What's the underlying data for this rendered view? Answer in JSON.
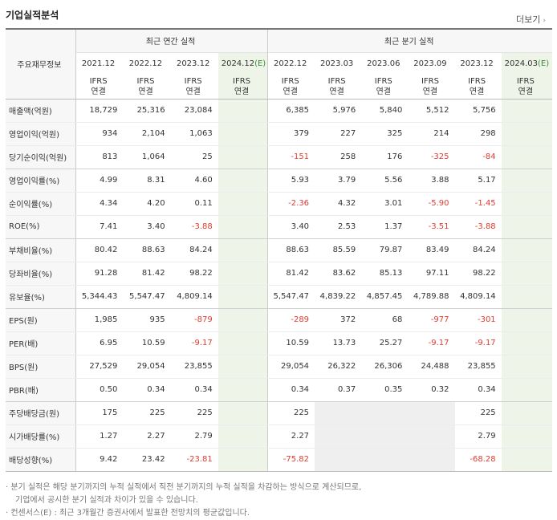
{
  "title": "기업실적분석",
  "more_label": "더보기",
  "header": {
    "row_label": "주요재무정보",
    "annual_group": "최근 연간 실적",
    "quarter_group": "최근 분기 실적",
    "annual_periods": [
      "2021.12",
      "2022.12",
      "2023.12",
      "2024.12(E)"
    ],
    "quarter_periods": [
      "2022.12",
      "2023.03",
      "2023.06",
      "2023.09",
      "2023.12",
      "2024.03(E)"
    ],
    "ifrs_top": "IFRS",
    "ifrs_bottom": "연결"
  },
  "rows": [
    {
      "label": "매출액(억원)",
      "annual": [
        "18,729",
        "25,316",
        "23,084",
        ""
      ],
      "quarter": [
        "6,385",
        "5,976",
        "5,840",
        "5,512",
        "5,756",
        ""
      ]
    },
    {
      "label": "영업이익(억원)",
      "annual": [
        "934",
        "2,104",
        "1,063",
        ""
      ],
      "quarter": [
        "379",
        "227",
        "325",
        "214",
        "298",
        ""
      ]
    },
    {
      "label": "당기순이익(억원)",
      "annual": [
        "813",
        "1,064",
        "25",
        ""
      ],
      "quarter": [
        "-151",
        "258",
        "176",
        "-325",
        "-84",
        ""
      ]
    },
    {
      "label": "영업이익률(%)",
      "annual": [
        "4.99",
        "8.31",
        "4.60",
        ""
      ],
      "quarter": [
        "5.93",
        "3.79",
        "5.56",
        "3.88",
        "5.17",
        ""
      ]
    },
    {
      "label": "순이익률(%)",
      "annual": [
        "4.34",
        "4.20",
        "0.11",
        ""
      ],
      "quarter": [
        "-2.36",
        "4.32",
        "3.01",
        "-5.90",
        "-1.45",
        ""
      ]
    },
    {
      "label": "ROE(%)",
      "annual": [
        "7.41",
        "3.40",
        "-3.88",
        ""
      ],
      "quarter": [
        "3.40",
        "2.53",
        "1.37",
        "-3.51",
        "-3.88",
        ""
      ]
    },
    {
      "label": "부채비율(%)",
      "annual": [
        "80.42",
        "88.63",
        "84.24",
        ""
      ],
      "quarter": [
        "88.63",
        "85.59",
        "79.87",
        "83.49",
        "84.24",
        ""
      ]
    },
    {
      "label": "당좌비율(%)",
      "annual": [
        "91.28",
        "81.42",
        "98.22",
        ""
      ],
      "quarter": [
        "81.42",
        "83.62",
        "85.13",
        "97.11",
        "98.22",
        ""
      ]
    },
    {
      "label": "유보율(%)",
      "annual": [
        "5,344.43",
        "5,547.47",
        "4,809.14",
        ""
      ],
      "quarter": [
        "5,547.47",
        "4,839.22",
        "4,857.45",
        "4,789.88",
        "4,809.14",
        ""
      ]
    },
    {
      "label": "EPS(원)",
      "annual": [
        "1,985",
        "935",
        "-879",
        ""
      ],
      "quarter": [
        "-289",
        "372",
        "68",
        "-977",
        "-301",
        ""
      ]
    },
    {
      "label": "PER(배)",
      "annual": [
        "6.95",
        "10.59",
        "-9.17",
        ""
      ],
      "quarter": [
        "10.59",
        "13.73",
        "25.27",
        "-9.17",
        "-9.17",
        ""
      ]
    },
    {
      "label": "BPS(원)",
      "annual": [
        "27,529",
        "29,054",
        "23,855",
        ""
      ],
      "quarter": [
        "29,054",
        "26,322",
        "26,306",
        "24,488",
        "23,855",
        ""
      ]
    },
    {
      "label": "PBR(배)",
      "annual": [
        "0.50",
        "0.34",
        "0.34",
        ""
      ],
      "quarter": [
        "0.34",
        "0.37",
        "0.35",
        "0.32",
        "0.34",
        ""
      ]
    },
    {
      "label": "주당배당금(원)",
      "annual": [
        "175",
        "225",
        "225",
        ""
      ],
      "quarter": [
        "225",
        "",
        "",
        "",
        "225",
        ""
      ]
    },
    {
      "label": "시가배당률(%)",
      "annual": [
        "1.27",
        "2.27",
        "2.79",
        ""
      ],
      "quarter": [
        "2.27",
        "",
        "",
        "",
        "2.79",
        ""
      ]
    },
    {
      "label": "배당성향(%)",
      "annual": [
        "9.42",
        "23.42",
        "-23.81",
        ""
      ],
      "quarter": [
        "-75.82",
        "",
        "",
        "",
        "-68.28",
        ""
      ]
    }
  ],
  "notes": {
    "line1": "· 분기 실적은 해당 분기까지의 누적 실적에서 직전 분기까지의 누적 실적을 차감하는 방식으로 계산되므로,",
    "line2": "기업에서 공시한 분기 실적과 차이가 있을 수 있습니다.",
    "line3": "· 컨센서스(E) : 최근 3개월간 증권사에서 발표한 전망치의 평균값입니다."
  },
  "colors": {
    "negative": "#e03c31",
    "ifrs": "#e56b17",
    "estimate_bg": "#eef5e8",
    "label_bg": "#f7f7f7"
  }
}
